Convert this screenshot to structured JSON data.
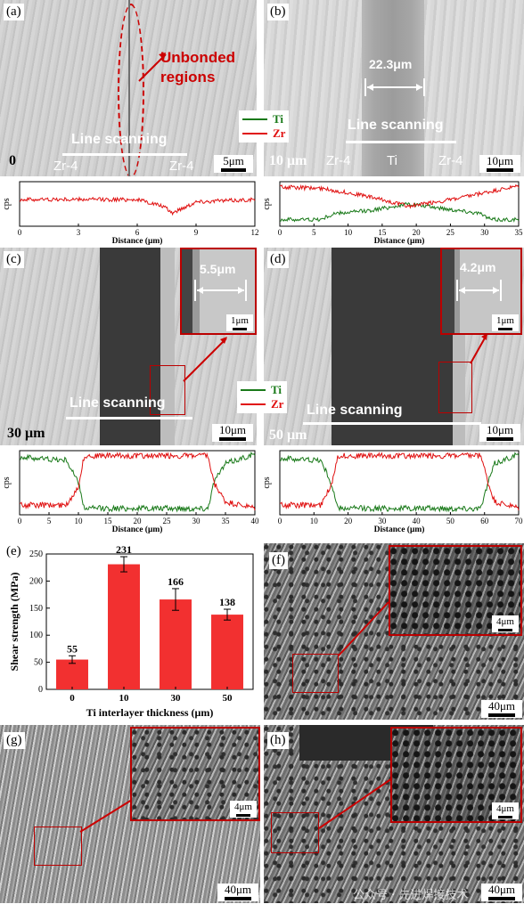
{
  "panels": {
    "a": {
      "label": "(a)",
      "unbonded": "Unbonded regions",
      "line_scanning": "Line scanning",
      "thickness": "0",
      "left_mat": "Zr-4",
      "right_mat": "Zr-4",
      "scale": "5μm"
    },
    "b": {
      "label": "(b)",
      "width": "22.3μm",
      "line_scanning": "Line scanning",
      "thickness": "10 μm",
      "left_mat": "Zr-4",
      "mid_mat": "Ti",
      "right_mat": "Zr-4",
      "scale": "10μm"
    },
    "c": {
      "label": "(c)",
      "width": "5.5μm",
      "inset_scale": "1μm",
      "line_scanning": "Line scanning",
      "thickness": "30 μm",
      "scale": "10μm"
    },
    "d": {
      "label": "(d)",
      "width": "4.2μm",
      "inset_scale": "1μm",
      "line_scanning": "Line scanning",
      "thickness": "50 μm",
      "scale": "10μm"
    },
    "e": {
      "label": "(e)"
    },
    "f": {
      "label": "(f)",
      "inset_scale": "4μm",
      "scale": "40μm"
    },
    "g": {
      "label": "(g)",
      "inset_scale": "4μm",
      "scale": "40μm"
    },
    "h": {
      "label": "(h)",
      "inset_scale": "4μm",
      "scale": "40μm"
    }
  },
  "legend": {
    "ti": "Ti",
    "zr": "Zr",
    "ti_color": "#1a7a1a",
    "zr_color": "#e01010"
  },
  "watermark": "公众号 · 先进焊接技术",
  "chart_data": [
    {
      "type": "line",
      "panel": "a",
      "ylabel": "cps",
      "xlabel": "Distance (μm)",
      "xlim": [
        0,
        12
      ],
      "xticks": [
        0,
        3,
        6,
        9,
        12
      ],
      "series": [
        {
          "name": "Zr",
          "description_points": [
            [
              0,
              0.6
            ],
            [
              6,
              0.6
            ],
            [
              7.3,
              0.45
            ],
            [
              7.8,
              0.3
            ],
            [
              9,
              0.55
            ],
            [
              12,
              0.6
            ]
          ]
        }
      ]
    },
    {
      "type": "line",
      "panel": "b",
      "ylabel": "cps",
      "xlabel": "Distance (μm)",
      "xlim": [
        0,
        35
      ],
      "xticks": [
        0,
        5,
        10,
        15,
        20,
        25,
        30,
        35
      ],
      "series": [
        {
          "name": "Ti",
          "points": [
            [
              0,
              0.15
            ],
            [
              6,
              0.15
            ],
            [
              8,
              0.28
            ],
            [
              13,
              0.35
            ],
            [
              19,
              0.5
            ],
            [
              25,
              0.38
            ],
            [
              29,
              0.3
            ],
            [
              31,
              0.15
            ],
            [
              35,
              0.15
            ]
          ]
        },
        {
          "name": "Zr",
          "points": [
            [
              0,
              0.88
            ],
            [
              6,
              0.85
            ],
            [
              12,
              0.7
            ],
            [
              19,
              0.45
            ],
            [
              26,
              0.62
            ],
            [
              30,
              0.75
            ],
            [
              35,
              0.9
            ]
          ]
        }
      ]
    },
    {
      "type": "line",
      "panel": "c",
      "ylabel": "cps",
      "xlabel": "Distance (μm)",
      "xlim": [
        0,
        40
      ],
      "xticks": [
        0,
        5,
        10,
        15,
        20,
        25,
        30,
        35,
        40
      ],
      "series": [
        {
          "name": "Ti",
          "points": [
            [
              0,
              0.9
            ],
            [
              8,
              0.85
            ],
            [
              10,
              0.5
            ],
            [
              11,
              0.1
            ],
            [
              32,
              0.1
            ],
            [
              33,
              0.5
            ],
            [
              35,
              0.8
            ],
            [
              40,
              0.95
            ]
          ]
        },
        {
          "name": "Zr",
          "points": [
            [
              0,
              0.15
            ],
            [
              8,
              0.15
            ],
            [
              10,
              0.45
            ],
            [
              11,
              0.92
            ],
            [
              32,
              0.92
            ],
            [
              33,
              0.5
            ],
            [
              35,
              0.2
            ],
            [
              40,
              0.1
            ]
          ]
        }
      ]
    },
    {
      "type": "line",
      "panel": "d",
      "ylabel": "cps",
      "xlabel": "Distance (μm)",
      "xlim": [
        0,
        70
      ],
      "xticks": [
        0,
        10,
        20,
        30,
        40,
        50,
        60,
        70
      ],
      "series": [
        {
          "name": "Ti",
          "points": [
            [
              0,
              0.88
            ],
            [
              12,
              0.85
            ],
            [
              15,
              0.5
            ],
            [
              17,
              0.1
            ],
            [
              59,
              0.1
            ],
            [
              61,
              0.5
            ],
            [
              63,
              0.8
            ],
            [
              70,
              0.95
            ]
          ]
        },
        {
          "name": "Zr",
          "points": [
            [
              0,
              0.15
            ],
            [
              12,
              0.15
            ],
            [
              15,
              0.45
            ],
            [
              17,
              0.92
            ],
            [
              59,
              0.92
            ],
            [
              61,
              0.5
            ],
            [
              63,
              0.2
            ],
            [
              70,
              0.1
            ]
          ]
        }
      ]
    },
    {
      "type": "bar",
      "panel": "e",
      "title": "",
      "xlabel": "Ti interlayer thickness (μm)",
      "ylabel": "Shear strength (MPa)",
      "categories": [
        "0",
        "10",
        "30",
        "50"
      ],
      "values": [
        55,
        231,
        166,
        138
      ],
      "errors": [
        7,
        14,
        20,
        10
      ],
      "ylim": [
        0,
        250
      ],
      "yticks": [
        0,
        50,
        100,
        150,
        200,
        250
      ],
      "color": "#f23030"
    }
  ]
}
